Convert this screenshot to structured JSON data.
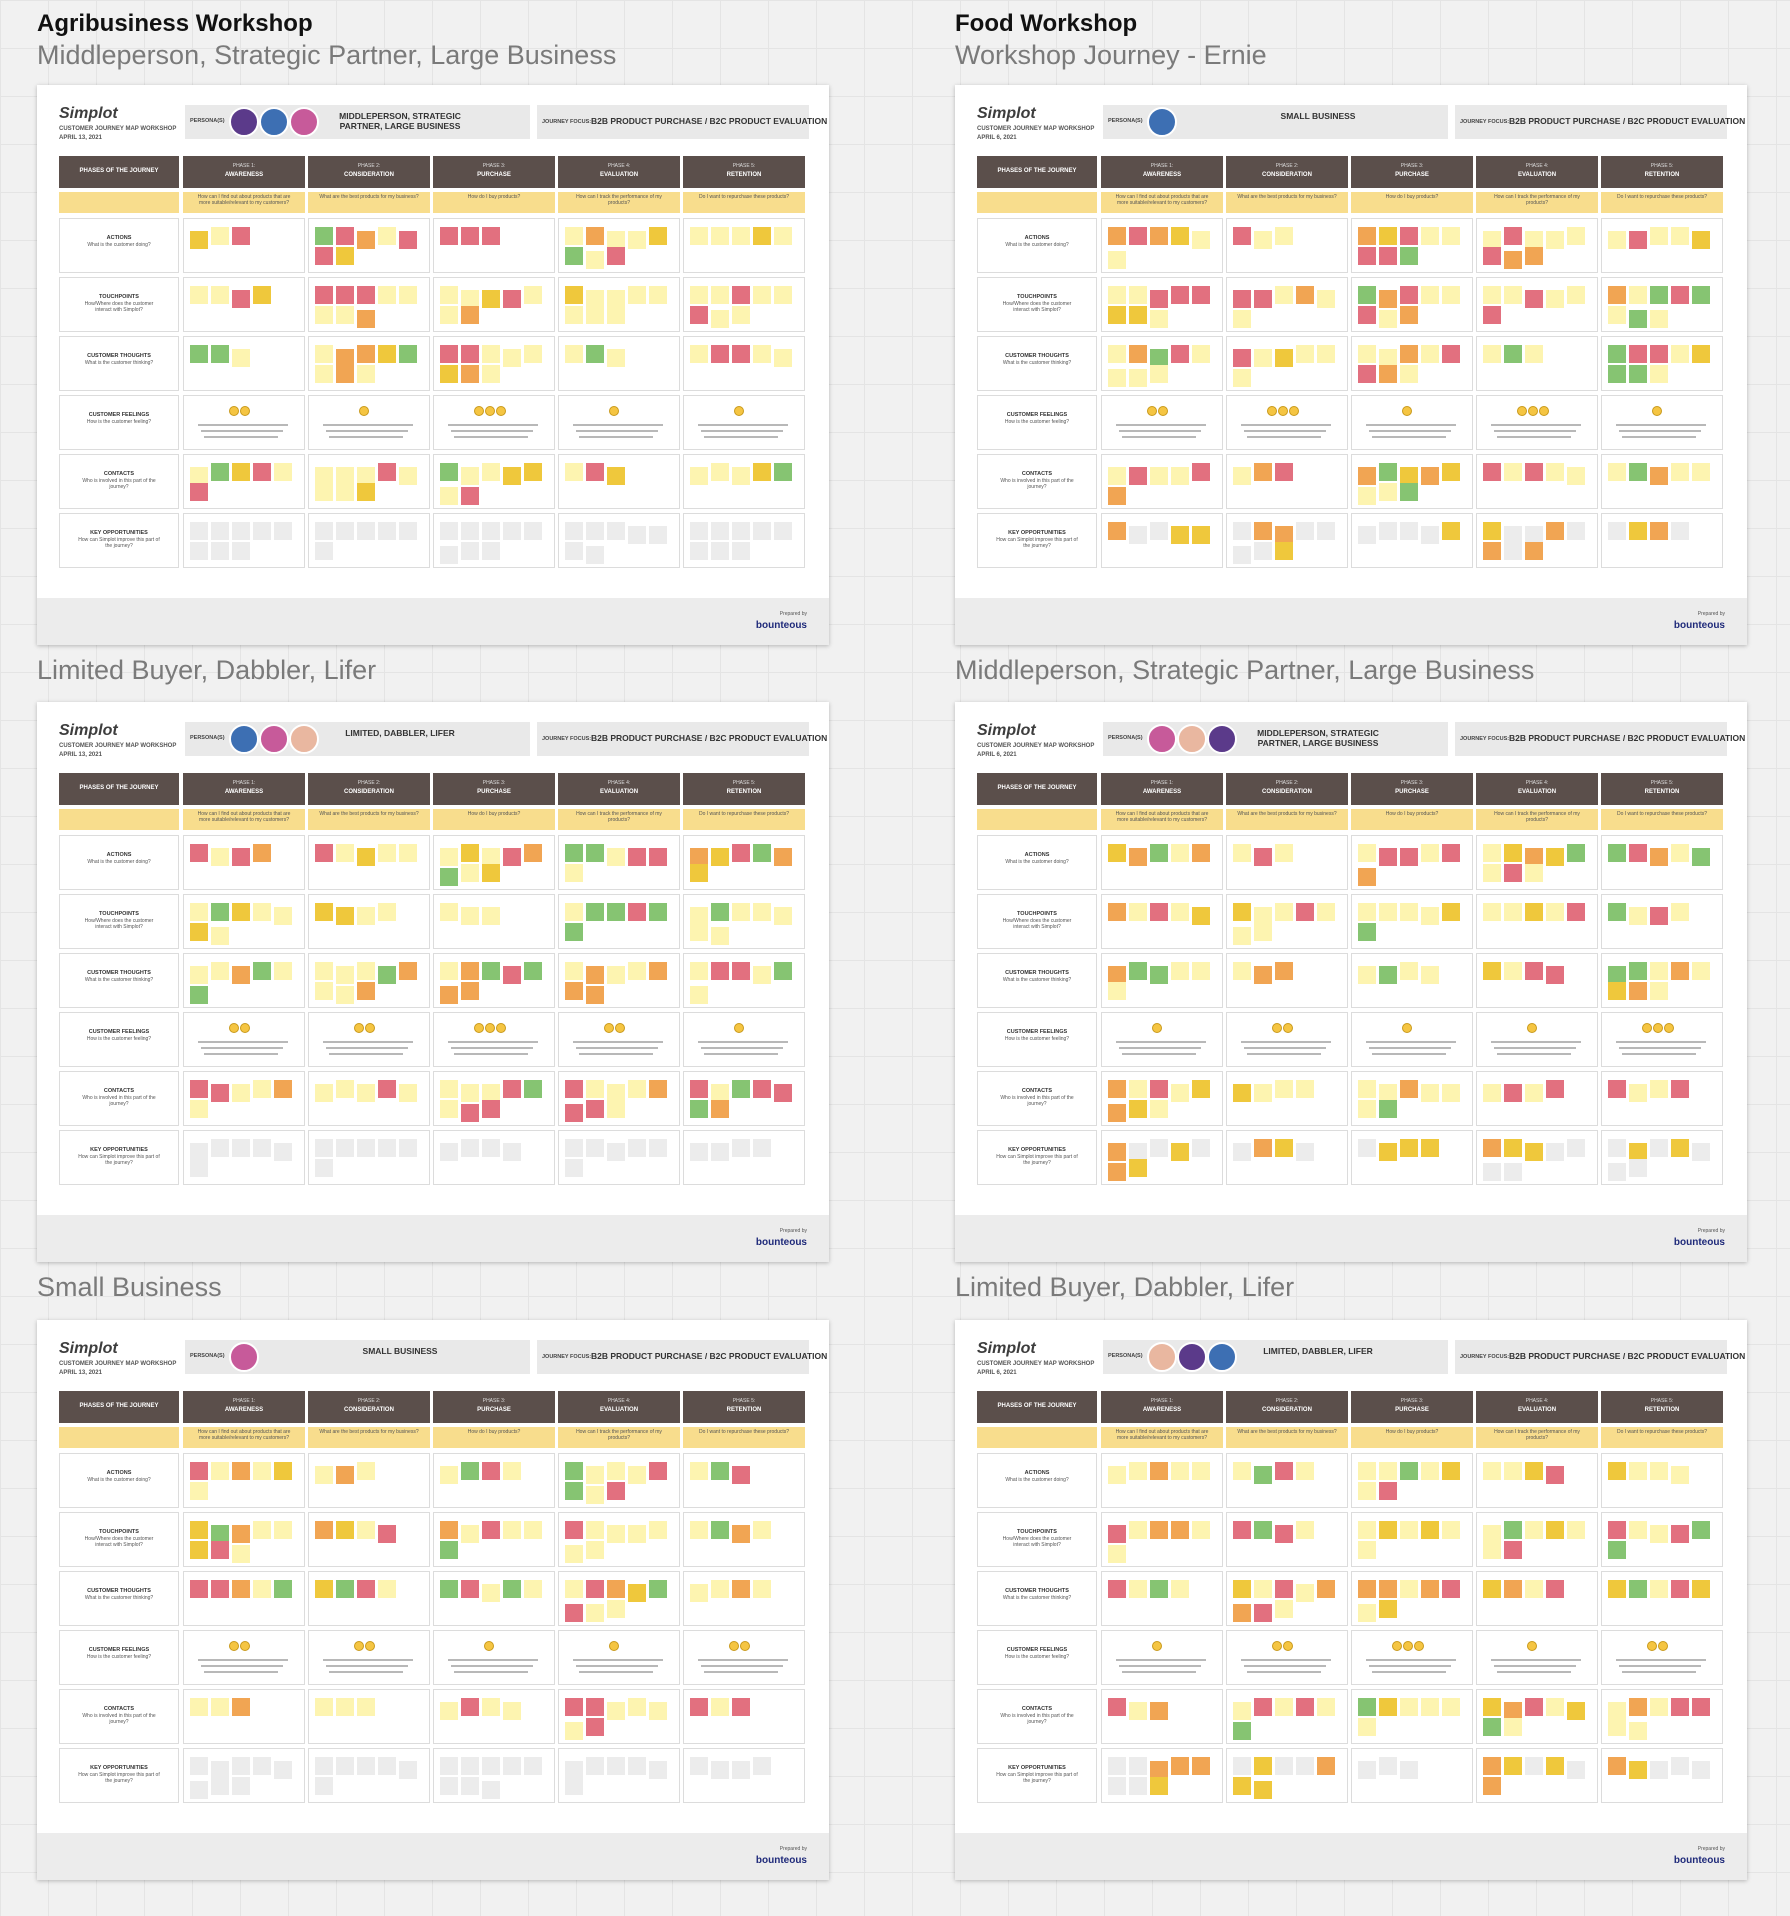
{
  "columns": [
    {
      "title": "Agribusiness Workshop",
      "date": "APRIL 13, 2021",
      "boards": [
        {
          "subtitle": "Middleperson, Strategic Partner, Large Business",
          "personas": "MIDDLEPERSON, STRATEGIC PARTNER, LARGE BUSINESS"
        },
        {
          "subtitle": "Limited Buyer, Dabbler, Lifer",
          "personas": "LIMITED, DABBLER, LIFER"
        },
        {
          "subtitle": "Small Business",
          "personas": "SMALL BUSINESS"
        }
      ]
    },
    {
      "title": "Food Workshop",
      "date": "APRIL 6, 2021",
      "boards": [
        {
          "subtitle": "Workshop Journey - Ernie",
          "personas": "SMALL BUSINESS"
        },
        {
          "subtitle": "Middleperson, Strategic Partner, Large Business",
          "personas": "MIDDLEPERSON, STRATEGIC PARTNER, LARGE BUSINESS"
        },
        {
          "subtitle": "Limited Buyer, Dabbler, Lifer",
          "personas": "LIMITED, DABBLER, LIFER"
        }
      ]
    }
  ],
  "board": {
    "logo": "Simplot",
    "workshop": "CUSTOMER JOURNEY MAP WORKSHOP",
    "personas_label": "PERSONA(S)",
    "focus_label": "JOURNEY FOCUS:",
    "focus": "B2B PRODUCT PURCHASE / B2C PRODUCT EVALUATION",
    "phases_header": "PHASES OF THE JOURNEY",
    "phases": [
      {
        "num": "PHASE 1:",
        "name": "AWARENESS",
        "question": "How can I find out about products that are more suitable/relevant to my customers?"
      },
      {
        "num": "PHASE 2:",
        "name": "CONSIDERATION",
        "question": "What are the best products for my business?"
      },
      {
        "num": "PHASE 3:",
        "name": "PURCHASE",
        "question": "How do I buy products?"
      },
      {
        "num": "PHASE 4:",
        "name": "EVALUATION",
        "question": "How can I track the performance of my products?"
      },
      {
        "num": "PHASE 5:",
        "name": "RETENTION",
        "question": "Do I want to repurchase these products?"
      }
    ],
    "rows": [
      {
        "title": "ACTIONS",
        "question": "What is the customer doing?"
      },
      {
        "title": "TOUCHPOINTS",
        "question": "How/Where does the customer interact with Simplot?"
      },
      {
        "title": "CUSTOMER THOUGHTS",
        "question": "What is the customer thinking?"
      },
      {
        "title": "CUSTOMER FEELINGS",
        "question": "How is the customer feeling?"
      },
      {
        "title": "CONTACTS",
        "question": "Who is involved in this part of the journey?"
      },
      {
        "title": "KEY OPPORTUNITIES",
        "question": "How can Simplot improve this part of the journey?"
      }
    ],
    "prepared_by": "Prepared by",
    "brand": "bounteous"
  }
}
